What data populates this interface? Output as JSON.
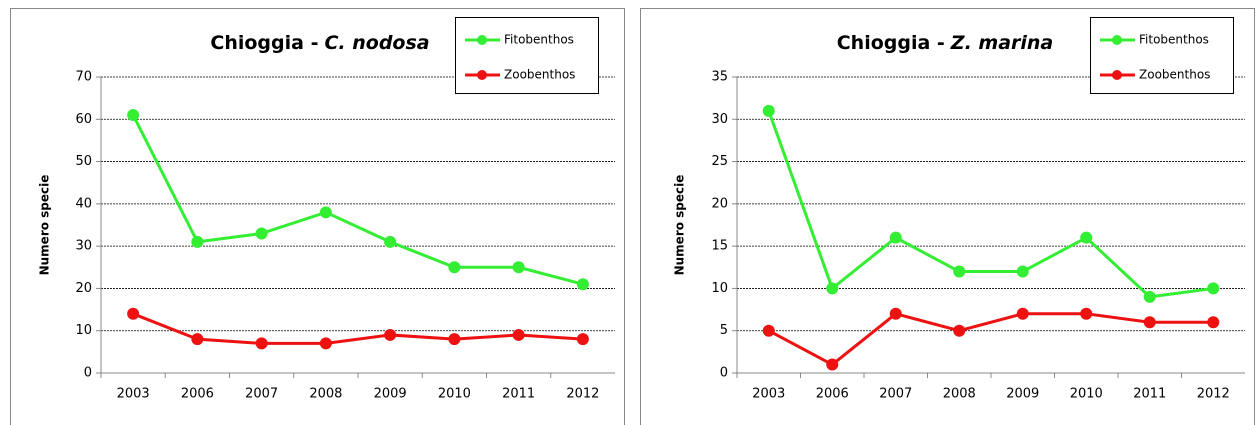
{
  "chart_data": [
    {
      "type": "line",
      "title": [
        "Chioggia -",
        "C. nodosa"
      ],
      "y_label": "Numero specie",
      "categories": [
        "2003",
        "2006",
        "2007",
        "2008",
        "2009",
        "2010",
        "2011",
        "2012"
      ],
      "series": [
        {
          "name": "Fitobenthos",
          "color": "#33ee33",
          "values": [
            61,
            31,
            33,
            38,
            31,
            25,
            25,
            21
          ]
        },
        {
          "name": "Zoobenthos",
          "color": "#ee1111",
          "values": [
            14,
            8,
            7,
            7,
            9,
            8,
            9,
            8
          ]
        }
      ],
      "ylim": [
        0,
        70
      ],
      "yticks": [
        0,
        10,
        20,
        30,
        40,
        50,
        60,
        70
      ],
      "grid": true,
      "legend": "upper right"
    },
    {
      "type": "line",
      "title": [
        "Chioggia -",
        "Z. marina"
      ],
      "y_label": "Numero specie",
      "categories": [
        "2003",
        "2006",
        "2007",
        "2008",
        "2009",
        "2010",
        "2011",
        "2012"
      ],
      "series": [
        {
          "name": "Fitobenthos",
          "color": "#33ee33",
          "values": [
            31,
            10,
            16,
            12,
            12,
            16,
            9,
            10
          ]
        },
        {
          "name": "Zoobenthos",
          "color": "#ee1111",
          "values": [
            5,
            1,
            7,
            5,
            7,
            7,
            6,
            6
          ]
        }
      ],
      "ylim": [
        0,
        35
      ],
      "yticks": [
        0,
        5,
        10,
        15,
        20,
        25,
        30,
        35
      ],
      "grid": true,
      "legend": "upper right"
    }
  ]
}
